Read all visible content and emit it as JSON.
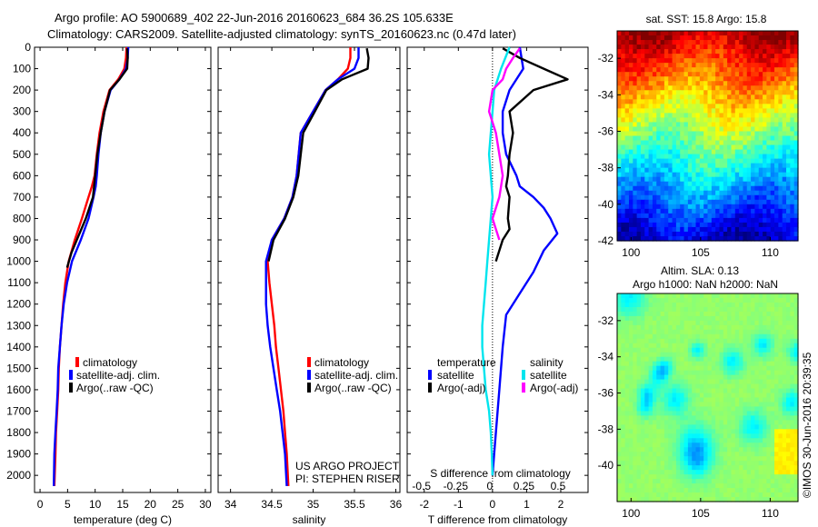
{
  "title_line1": "Argo profile: AO 5900689_402 22-Jun-2016 20160623_684 36.2S 105.633E",
  "title_line2": "Climatology: CARS2009. Satellite-adjusted climatology: synTS_20160623.nc (0.47d later)",
  "sst_title": "sat. SST: 15.8 Argo: 15.8",
  "sla_title1": "Altim. SLA: 0.13",
  "sla_title2": "Argo h1000: NaN h2000: NaN",
  "stamp": "©IMOS 30-Jun-2016 20:39:35",
  "project_line1": "US ARGO PROJECT",
  "project_line2": "PI: STEPHEN RISER",
  "colors": {
    "climatology": "#ff0000",
    "satellite": "#0000ff",
    "argo": "#000000",
    "sal_satellite": "#00e5ee",
    "sal_argo": "#ff00ff"
  },
  "legend1": {
    "climatology": "climatology",
    "satellite": "satellite-adj. clim.",
    "argo": "Argo(..raw -QC)"
  },
  "legend3": {
    "temp_title": "temperature",
    "sal_title": "salinity",
    "satellite": "satellite",
    "argo": "Argo(-adj)"
  },
  "chart_data": [
    {
      "type": "line",
      "xlabel": "temperature (deg C)",
      "xlim": [
        -1,
        31
      ],
      "xticks": [
        0,
        5,
        10,
        15,
        20,
        25,
        30
      ],
      "ylim": [
        2080,
        0
      ],
      "yticks": [
        0,
        100,
        200,
        300,
        400,
        500,
        600,
        700,
        800,
        900,
        1000,
        1100,
        1200,
        1300,
        1400,
        1500,
        1600,
        1700,
        1800,
        1900,
        2000
      ],
      "series": [
        {
          "name": "climatology",
          "color": "#ff0000",
          "x": [
            15.7,
            15.6,
            15.3,
            14.2,
            12.6,
            11.5,
            10.8,
            10.3,
            9.9,
            9.4,
            8.8,
            7.6,
            6.3,
            5.2,
            4.6,
            4.2,
            3.9,
            3.6,
            3.4,
            3.3,
            3.1,
            2.9,
            2.8,
            2.6
          ],
          "y": [
            0,
            50,
            100,
            150,
            200,
            300,
            400,
            500,
            600,
            650,
            700,
            800,
            900,
            1000,
            1100,
            1200,
            1300,
            1400,
            1500,
            1600,
            1700,
            1800,
            1900,
            2050
          ]
        },
        {
          "name": "satellite-adj. clim.",
          "color": "#0000ff",
          "x": [
            16.0,
            15.9,
            15.6,
            14.4,
            12.8,
            11.7,
            11.0,
            10.6,
            10.3,
            10.1,
            9.7,
            8.8,
            7.4,
            5.8,
            4.9,
            4.3,
            3.9,
            3.6,
            3.3,
            3.2,
            3.0,
            2.8,
            2.6,
            2.5
          ],
          "y": [
            0,
            50,
            100,
            150,
            200,
            300,
            400,
            500,
            600,
            650,
            700,
            800,
            900,
            1000,
            1100,
            1200,
            1300,
            1400,
            1500,
            1600,
            1700,
            1800,
            1900,
            2050
          ]
        },
        {
          "name": "Argo(..raw -QC)",
          "color": "#000000",
          "x": [
            15.8,
            15.9,
            15.8,
            14.4,
            12.7,
            11.7,
            11.0,
            10.4,
            10.0,
            9.8,
            9.6,
            8.3,
            7.0,
            5.7,
            4.9
          ],
          "y": [
            5,
            50,
            100,
            150,
            200,
            300,
            400,
            500,
            600,
            650,
            700,
            800,
            880,
            960,
            1030
          ]
        }
      ]
    },
    {
      "type": "line",
      "xlabel": "salinity",
      "xlim": [
        33.85,
        36.05
      ],
      "xticks": [
        34,
        34.5,
        35,
        35.5,
        36
      ],
      "ylim": [
        2080,
        0
      ],
      "series": [
        {
          "name": "climatology",
          "color": "#ff0000",
          "x": [
            35.45,
            35.45,
            35.42,
            35.3,
            35.15,
            35.0,
            34.85,
            34.8,
            34.75,
            34.65,
            34.5,
            34.45,
            34.47,
            34.5,
            34.53,
            34.55,
            34.58,
            34.61,
            34.64,
            34.66,
            34.68,
            34.7
          ],
          "y": [
            0,
            50,
            100,
            150,
            200,
            300,
            400,
            600,
            700,
            800,
            900,
            1000,
            1100,
            1200,
            1300,
            1400,
            1500,
            1600,
            1700,
            1800,
            1900,
            2050
          ]
        },
        {
          "name": "satellite-adj. clim.",
          "color": "#0000ff",
          "x": [
            35.55,
            35.55,
            35.5,
            35.3,
            35.15,
            35.0,
            34.85,
            34.8,
            34.75,
            34.65,
            34.5,
            34.43,
            34.43,
            34.43,
            34.45,
            34.48,
            34.52,
            34.56,
            34.6,
            34.63,
            34.66,
            34.68
          ],
          "y": [
            0,
            50,
            100,
            150,
            200,
            300,
            400,
            600,
            700,
            800,
            900,
            1000,
            1100,
            1200,
            1300,
            1400,
            1500,
            1600,
            1700,
            1800,
            1900,
            2050
          ]
        },
        {
          "name": "Argo(..raw -QC)",
          "color": "#000000",
          "x": [
            35.65,
            35.67,
            35.66,
            35.35,
            35.16,
            35.02,
            34.88,
            34.82,
            34.76,
            34.66,
            34.52,
            34.46
          ],
          "y": [
            5,
            50,
            100,
            150,
            200,
            300,
            400,
            600,
            700,
            800,
            900,
            1000
          ]
        }
      ]
    },
    {
      "type": "line",
      "xlabel": "T difference from climatology",
      "xlabel_top": "S difference from climatology",
      "xlim": [
        -2.5,
        2.8
      ],
      "xticks": [
        -2,
        -1,
        0,
        1,
        2
      ],
      "xticks_top": [
        -0.5,
        -0.25,
        0,
        0.25,
        0.5
      ],
      "xticks_top_labels": [
        "-0.5",
        "-0.25",
        "0",
        "0.25",
        "0.5"
      ],
      "ylim": [
        2080,
        0
      ],
      "series": [
        {
          "name": "temperature satellite",
          "color": "#0000ff",
          "x": [
            0.8,
            0.9,
            0.5,
            0.3,
            0.3,
            0.4,
            0.7,
            0.8,
            1.2,
            1.5,
            1.7,
            1.9,
            1.5,
            1.2,
            0.8,
            0.4,
            0.3,
            0.2,
            0.15,
            0.1,
            0.05,
            0.0
          ],
          "y": [
            0,
            100,
            200,
            300,
            400,
            500,
            600,
            650,
            700,
            750,
            800,
            870,
            950,
            1050,
            1150,
            1250,
            1400,
            1600,
            1700,
            1800,
            1900,
            2000
          ]
        },
        {
          "name": "temperature Argo(-adj)",
          "color": "#000000",
          "x": [
            0.3,
            0.8,
            1.5,
            2.2,
            1.2,
            0.5,
            0.6,
            0.5,
            0.45,
            0.4,
            0.5,
            0.45,
            0.5,
            0.3,
            0.1
          ],
          "y": [
            5,
            50,
            100,
            150,
            200,
            300,
            400,
            500,
            600,
            650,
            700,
            800,
            850,
            900,
            1000
          ]
        },
        {
          "name": "salinity satellite",
          "color": "#00e5ee",
          "x": [
            0.5,
            0.25,
            0.05,
            0.0,
            -0.05,
            -0.1,
            -0.05,
            0.0,
            -0.05,
            -0.1,
            -0.15,
            -0.2,
            -0.25,
            -0.3,
            -0.3,
            -0.25,
            -0.2,
            -0.1,
            -0.05,
            -0.02,
            0.0
          ],
          "y": [
            0,
            100,
            200,
            300,
            400,
            500,
            600,
            700,
            800,
            900,
            1000,
            1100,
            1200,
            1300,
            1400,
            1500,
            1600,
            1700,
            1800,
            1900,
            2000
          ]
        },
        {
          "name": "salinity Argo(-adj)",
          "color": "#ff00ff",
          "x": [
            0.8,
            0.6,
            0.4,
            0.3,
            0.0,
            -0.1,
            0.1,
            0.2,
            0.3,
            0.2,
            0.0,
            0.1,
            0.2
          ],
          "y": [
            5,
            50,
            100,
            150,
            200,
            300,
            400,
            500,
            600,
            700,
            800,
            850,
            900
          ]
        }
      ]
    },
    {
      "type": "heatmap",
      "title": "sat. SST: 15.8 Argo: 15.8",
      "xlim": [
        99,
        112
      ],
      "xticks": [
        100,
        105,
        110
      ],
      "ylim": [
        -42,
        -30.5
      ],
      "yticks": [
        -42,
        -40,
        -38,
        -36,
        -34,
        -32
      ]
    },
    {
      "type": "heatmap",
      "title": "Argo h1000: NaN h2000: NaN",
      "xlim": [
        99,
        112
      ],
      "xticks": [
        100,
        105,
        110
      ],
      "ylim": [
        -42,
        -30.5
      ],
      "yticks": [
        -40,
        -38,
        -36,
        -34,
        -32
      ]
    }
  ]
}
